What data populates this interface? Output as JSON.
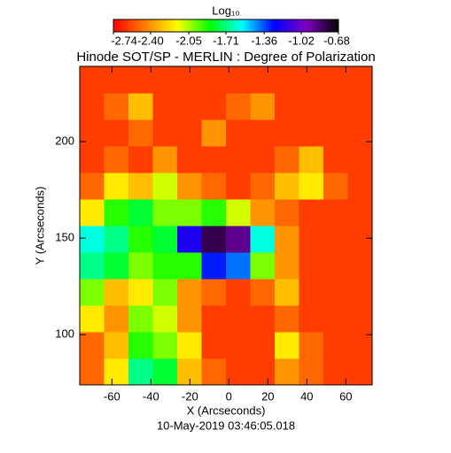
{
  "chart_data": {
    "type": "heatmap",
    "title": "Hinode SOT/SP - MERLIN : Degree of Polarization",
    "subtitle": "10-May-2019 03:46:05.018",
    "x_label": "X (Arcseconds)",
    "y_label": "Y (Arcseconds)",
    "colorbar_label": "Log₁₀",
    "colormap": [
      "#ff0000",
      "#ff8000",
      "#ffff00",
      "#00ff00",
      "#00ffff",
      "#0000ff",
      "#8000c0",
      "#000000"
    ],
    "clim": [
      -2.74,
      -0.68
    ],
    "cticks": [
      -2.74,
      {
        "value": -2.4,
        "label": "-2.40"
      },
      -2.05,
      -1.71,
      -1.36,
      -1.02,
      -0.68
    ],
    "xlim": [
      -76.5,
      73.5
    ],
    "ylim": [
      74,
      239
    ],
    "xticks": [
      -60,
      -40,
      -20,
      0,
      20,
      40,
      60
    ],
    "yticks": [
      100,
      150,
      200
    ],
    "x": [
      -70.25,
      -57.75,
      -45.25,
      -32.75,
      -20.25,
      -7.75,
      4.75,
      17.25,
      29.75,
      42.25,
      54.75,
      67.25
    ],
    "y": [
      80.875,
      94.625,
      108.375,
      122.125,
      135.875,
      149.625,
      163.375,
      177.125,
      190.875,
      204.625,
      218.375,
      232.125
    ],
    "z": [
      [
        -2.5,
        -2.2,
        -1.7,
        -1.8,
        -2.3,
        -2.5,
        -2.6,
        -2.6,
        -2.4,
        -2.5,
        -2.6,
        -2.6
      ],
      [
        -2.5,
        -2.3,
        -1.9,
        -2.0,
        -2.2,
        -2.6,
        -2.6,
        -2.6,
        -2.2,
        -2.5,
        -2.6,
        -2.6
      ],
      [
        -2.2,
        -2.4,
        -2.0,
        -2.1,
        -2.4,
        -2.6,
        -2.6,
        -2.6,
        -2.5,
        -2.6,
        -2.6,
        -2.6
      ],
      [
        -2.0,
        -2.3,
        -2.2,
        -2.0,
        -2.4,
        -2.5,
        -2.6,
        -2.5,
        -2.3,
        -2.6,
        -2.6,
        -2.6
      ],
      [
        -1.7,
        -1.8,
        -2.0,
        -1.9,
        -1.9,
        -1.3,
        -1.4,
        -2.0,
        -2.4,
        -2.6,
        -2.6,
        -2.6
      ],
      [
        -1.6,
        -1.7,
        -1.9,
        -1.8,
        -1.2,
        -0.8,
        -0.9,
        -1.6,
        -2.4,
        -2.6,
        -2.6,
        -2.6
      ],
      [
        -2.2,
        -1.9,
        -1.8,
        -2.0,
        -2.0,
        -1.9,
        -2.1,
        -2.4,
        -2.5,
        -2.6,
        -2.6,
        -2.6
      ],
      [
        -2.5,
        -2.2,
        -2.3,
        -2.1,
        -2.4,
        -2.5,
        -2.6,
        -2.5,
        -2.3,
        -2.2,
        -2.5,
        -2.6
      ],
      [
        -2.6,
        -2.5,
        -2.6,
        -2.4,
        -2.6,
        -2.6,
        -2.6,
        -2.6,
        -2.5,
        -2.3,
        -2.6,
        -2.6
      ],
      [
        -2.6,
        -2.6,
        -2.5,
        -2.6,
        -2.6,
        -2.4,
        -2.6,
        -2.6,
        -2.6,
        -2.6,
        -2.6,
        -2.6
      ],
      [
        -2.6,
        -2.5,
        -2.3,
        -2.6,
        -2.6,
        -2.6,
        -2.5,
        -2.4,
        -2.6,
        -2.6,
        -2.6,
        -2.6
      ],
      [
        -2.6,
        -2.6,
        -2.6,
        -2.6,
        -2.6,
        -2.6,
        -2.6,
        -2.6,
        -2.6,
        -2.6,
        -2.6,
        -2.6
      ]
    ]
  }
}
